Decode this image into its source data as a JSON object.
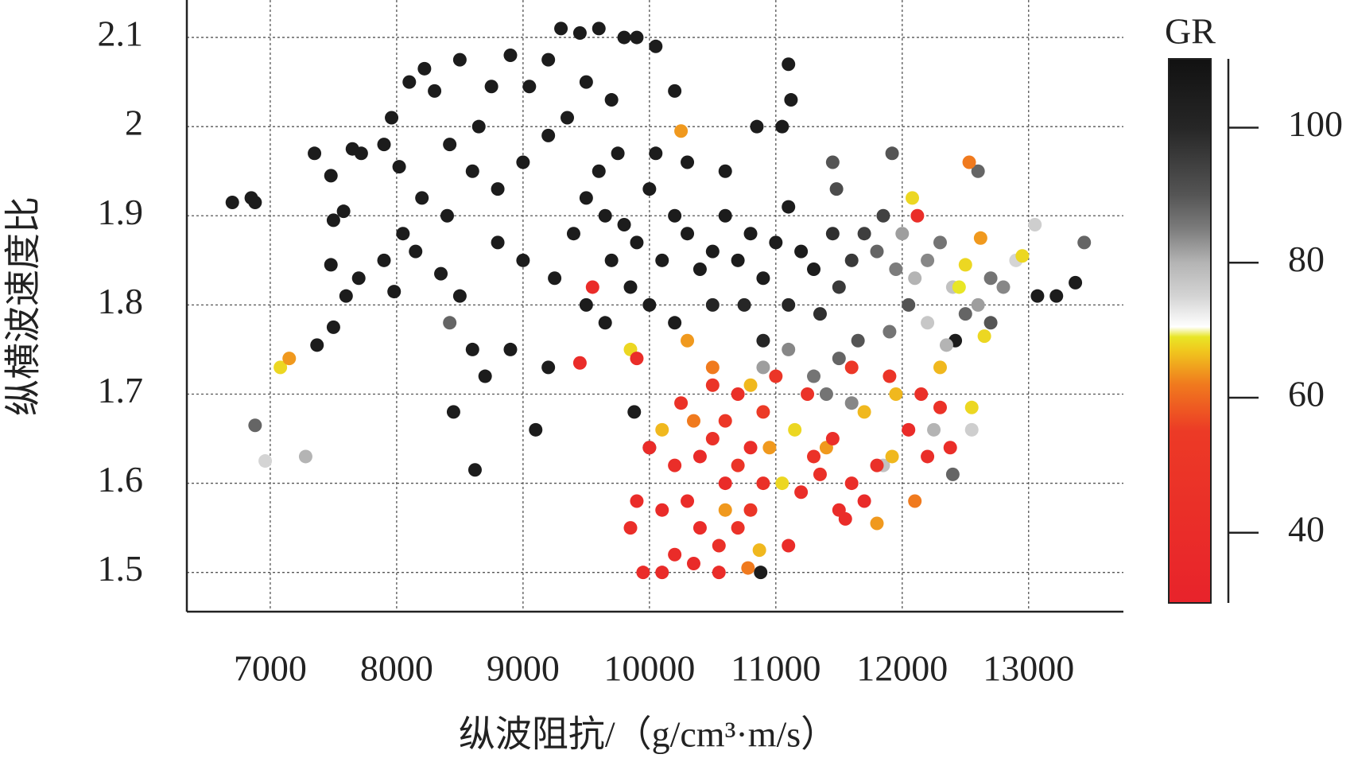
{
  "chart_data": {
    "type": "scatter",
    "x_label": "纵波阻抗/（g/cm³·m/s）",
    "y_label": "纵横波速度比",
    "xlim": [
      6340,
      13750
    ],
    "ylim": [
      1.456,
      2.142
    ],
    "xticks": [
      7000,
      8000,
      9000,
      10000,
      11000,
      12000,
      13000
    ],
    "yticks": [
      1.5,
      1.6,
      1.7,
      1.8,
      1.9,
      2.0,
      2.1
    ],
    "grid": true,
    "colorbar": {
      "label": "GR",
      "lim": [
        29.6,
        110.2
      ],
      "ticks": [
        40,
        60,
        80,
        100
      ],
      "colormap": [
        [
          29.6,
          "#e8232b"
        ],
        [
          55,
          "#ec3a26"
        ],
        [
          62,
          "#f07a1e"
        ],
        [
          67,
          "#f0c81e"
        ],
        [
          69,
          "#e8e626"
        ],
        [
          70.5,
          "#ffffff"
        ],
        [
          75,
          "#d4d4d4"
        ],
        [
          80,
          "#b4b4b4"
        ],
        [
          85,
          "#7c7c7c"
        ],
        [
          90,
          "#555555"
        ],
        [
          100,
          "#262626"
        ],
        [
          110.2,
          "#111111"
        ]
      ]
    },
    "series": [
      {
        "x": [
          6700,
          6850,
          6880,
          7350,
          7480,
          7500,
          7580,
          7650,
          7720,
          7900,
          7960,
          8020,
          8100,
          8220,
          8300,
          8500,
          8420,
          8650,
          8750,
          8900,
          9050,
          9200,
          9300,
          9450,
          9600,
          9800,
          9900,
          10050,
          10200,
          9700,
          9500,
          9350,
          9200,
          9000,
          8800,
          8600,
          8400,
          8200,
          8050,
          7900,
          7700,
          7600,
          7480,
          7500,
          7370,
          7980,
          8150,
          8350,
          8500,
          8450,
          8620,
          8700,
          8600,
          8900,
          8800,
          9000,
          9100,
          9200,
          9250,
          9400,
          9500,
          9650,
          9800,
          9900,
          10000,
          10100,
          10200,
          10300,
          10400,
          10500,
          10600,
          10700,
          10800,
          10900,
          11000,
          11100,
          11200,
          11300,
          9600,
          9750,
          10050,
          10300,
          10600,
          10850,
          11050,
          11100,
          11120,
          9700,
          9850,
          10000,
          10200,
          9650,
          9500,
          10500,
          10750,
          10900,
          11100,
          11350,
          11500,
          11600,
          11450,
          11700,
          11850,
          9880,
          10000,
          10880,
          13070,
          13220,
          13370,
          12420,
          6880,
          7280,
          6960,
          8420,
          11800,
          11950,
          12000,
          12100,
          12200,
          12300,
          12400,
          12500,
          12600,
          12700,
          12800,
          12350,
          12200,
          12050,
          11900,
          11650,
          11500,
          11300,
          11100,
          10900,
          12600,
          13440,
          11920,
          12900,
          13050,
          12400,
          12250,
          11850,
          11600,
          11400,
          12550,
          12700,
          11450,
          11480,
          7080,
          7150,
          10250,
          11950,
          12080,
          12530,
          12620,
          12500,
          12450,
          12300,
          12550,
          12100,
          11800,
          11050,
          10870,
          10600,
          10800,
          10500,
          10300,
          9850,
          10100,
          10350,
          11150,
          11400,
          11700,
          12650,
          12950,
          11920,
          10950,
          10780,
          9550,
          9450,
          10000,
          10200,
          10400,
          10500,
          10600,
          10700,
          10800,
          10900,
          10300,
          10100,
          9900,
          9850,
          10400,
          10550,
          10700,
          10800,
          10200,
          10350,
          10550,
          9950,
          10100,
          11200,
          11350,
          11500,
          11600,
          11700,
          11800,
          11550,
          11300,
          11450,
          11100,
          10250,
          10500,
          10700,
          11000,
          11250,
          11600,
          11900,
          12150,
          12200,
          12300,
          12050,
          12120,
          10600,
          10900,
          9900,
          12380
        ],
        "y": [
          1.915,
          1.92,
          1.915,
          1.97,
          1.945,
          1.895,
          1.905,
          1.975,
          1.97,
          1.98,
          2.01,
          1.955,
          2.05,
          2.065,
          2.04,
          2.075,
          1.98,
          2.0,
          2.045,
          2.08,
          2.045,
          2.075,
          2.11,
          2.105,
          2.11,
          2.1,
          2.1,
          2.09,
          2.04,
          2.03,
          2.05,
          2.01,
          1.99,
          1.96,
          1.93,
          1.95,
          1.9,
          1.92,
          1.88,
          1.85,
          1.83,
          1.81,
          1.845,
          1.775,
          1.755,
          1.815,
          1.86,
          1.835,
          1.81,
          1.68,
          1.615,
          1.72,
          1.75,
          1.75,
          1.87,
          1.85,
          1.66,
          1.73,
          1.83,
          1.88,
          1.92,
          1.9,
          1.89,
          1.87,
          1.93,
          1.85,
          1.9,
          1.88,
          1.84,
          1.86,
          1.9,
          1.85,
          1.88,
          1.83,
          1.87,
          1.91,
          1.86,
          1.84,
          1.95,
          1.97,
          1.97,
          1.96,
          1.95,
          2.0,
          2.0,
          2.07,
          2.03,
          1.85,
          1.82,
          1.8,
          1.78,
          1.78,
          1.8,
          1.8,
          1.8,
          1.76,
          1.8,
          1.79,
          1.82,
          1.85,
          1.88,
          1.88,
          1.9,
          1.68,
          1.64,
          1.5,
          1.81,
          1.81,
          1.825,
          1.76,
          1.665,
          1.63,
          1.625,
          1.78,
          1.86,
          1.84,
          1.88,
          1.83,
          1.85,
          1.87,
          1.82,
          1.79,
          1.8,
          1.83,
          1.82,
          1.755,
          1.78,
          1.8,
          1.77,
          1.76,
          1.74,
          1.72,
          1.75,
          1.73,
          1.95,
          1.87,
          1.97,
          1.85,
          1.89,
          1.61,
          1.66,
          1.62,
          1.69,
          1.7,
          1.66,
          1.78,
          1.96,
          1.93,
          1.73,
          1.74,
          1.995,
          1.7,
          1.92,
          1.96,
          1.875,
          1.845,
          1.82,
          1.73,
          1.685,
          1.58,
          1.555,
          1.6,
          1.525,
          1.57,
          1.71,
          1.73,
          1.76,
          1.75,
          1.66,
          1.67,
          1.66,
          1.64,
          1.68,
          1.765,
          1.855,
          1.63,
          1.64,
          1.505,
          1.82,
          1.735,
          1.64,
          1.62,
          1.63,
          1.65,
          1.6,
          1.62,
          1.64,
          1.6,
          1.58,
          1.57,
          1.58,
          1.55,
          1.55,
          1.53,
          1.55,
          1.57,
          1.52,
          1.51,
          1.5,
          1.5,
          1.5,
          1.59,
          1.61,
          1.57,
          1.6,
          1.58,
          1.62,
          1.56,
          1.63,
          1.65,
          1.53,
          1.69,
          1.71,
          1.7,
          1.72,
          1.7,
          1.73,
          1.72,
          1.7,
          1.63,
          1.685,
          1.66,
          1.9,
          1.67,
          1.68,
          1.74,
          1.64
        ],
        "gr": [
          105,
          105,
          105,
          105,
          105,
          105,
          105,
          105,
          105,
          105,
          105,
          105,
          105,
          105,
          105,
          105,
          105,
          105,
          105,
          105,
          105,
          105,
          105,
          105,
          105,
          105,
          105,
          105,
          105,
          105,
          105,
          105,
          105,
          105,
          105,
          105,
          105,
          105,
          105,
          105,
          105,
          105,
          105,
          105,
          105,
          105,
          105,
          105,
          105,
          105,
          105,
          105,
          105,
          105,
          105,
          105,
          105,
          105,
          105,
          105,
          105,
          105,
          105,
          105,
          105,
          105,
          105,
          105,
          105,
          105,
          105,
          105,
          105,
          105,
          105,
          105,
          105,
          105,
          105,
          105,
          105,
          105,
          105,
          105,
          105,
          105,
          105,
          105,
          105,
          105,
          105,
          105,
          105,
          100,
          100,
          100,
          100,
          98,
          96,
          96,
          98,
          95,
          94,
          105,
          105,
          105,
          105,
          105,
          105,
          105,
          88,
          80,
          75,
          88,
          88,
          85,
          82,
          80,
          84,
          86,
          78,
          88,
          82,
          86,
          84,
          80,
          77,
          90,
          86,
          90,
          88,
          86,
          84,
          82,
          88,
          88,
          90,
          75,
          76,
          88,
          80,
          78,
          84,
          86,
          76,
          90,
          90,
          92,
          68,
          64,
          64,
          66,
          68,
          62,
          64,
          68,
          69,
          66,
          68,
          62,
          64,
          68,
          66,
          64,
          66,
          62,
          64,
          68,
          66,
          62,
          68,
          64,
          66,
          68,
          68,
          66,
          64,
          62,
          40,
          40,
          40,
          42,
          38,
          45,
          40,
          48,
          42,
          44,
          40,
          38,
          40,
          42,
          40,
          44,
          46,
          50,
          40,
          38,
          40,
          40,
          38,
          42,
          44,
          40,
          42,
          38,
          44,
          40,
          46,
          42,
          40,
          46,
          48,
          44,
          50,
          46,
          52,
          48,
          44,
          42,
          46,
          40,
          42,
          52,
          55,
          42,
          42
        ]
      }
    ]
  }
}
